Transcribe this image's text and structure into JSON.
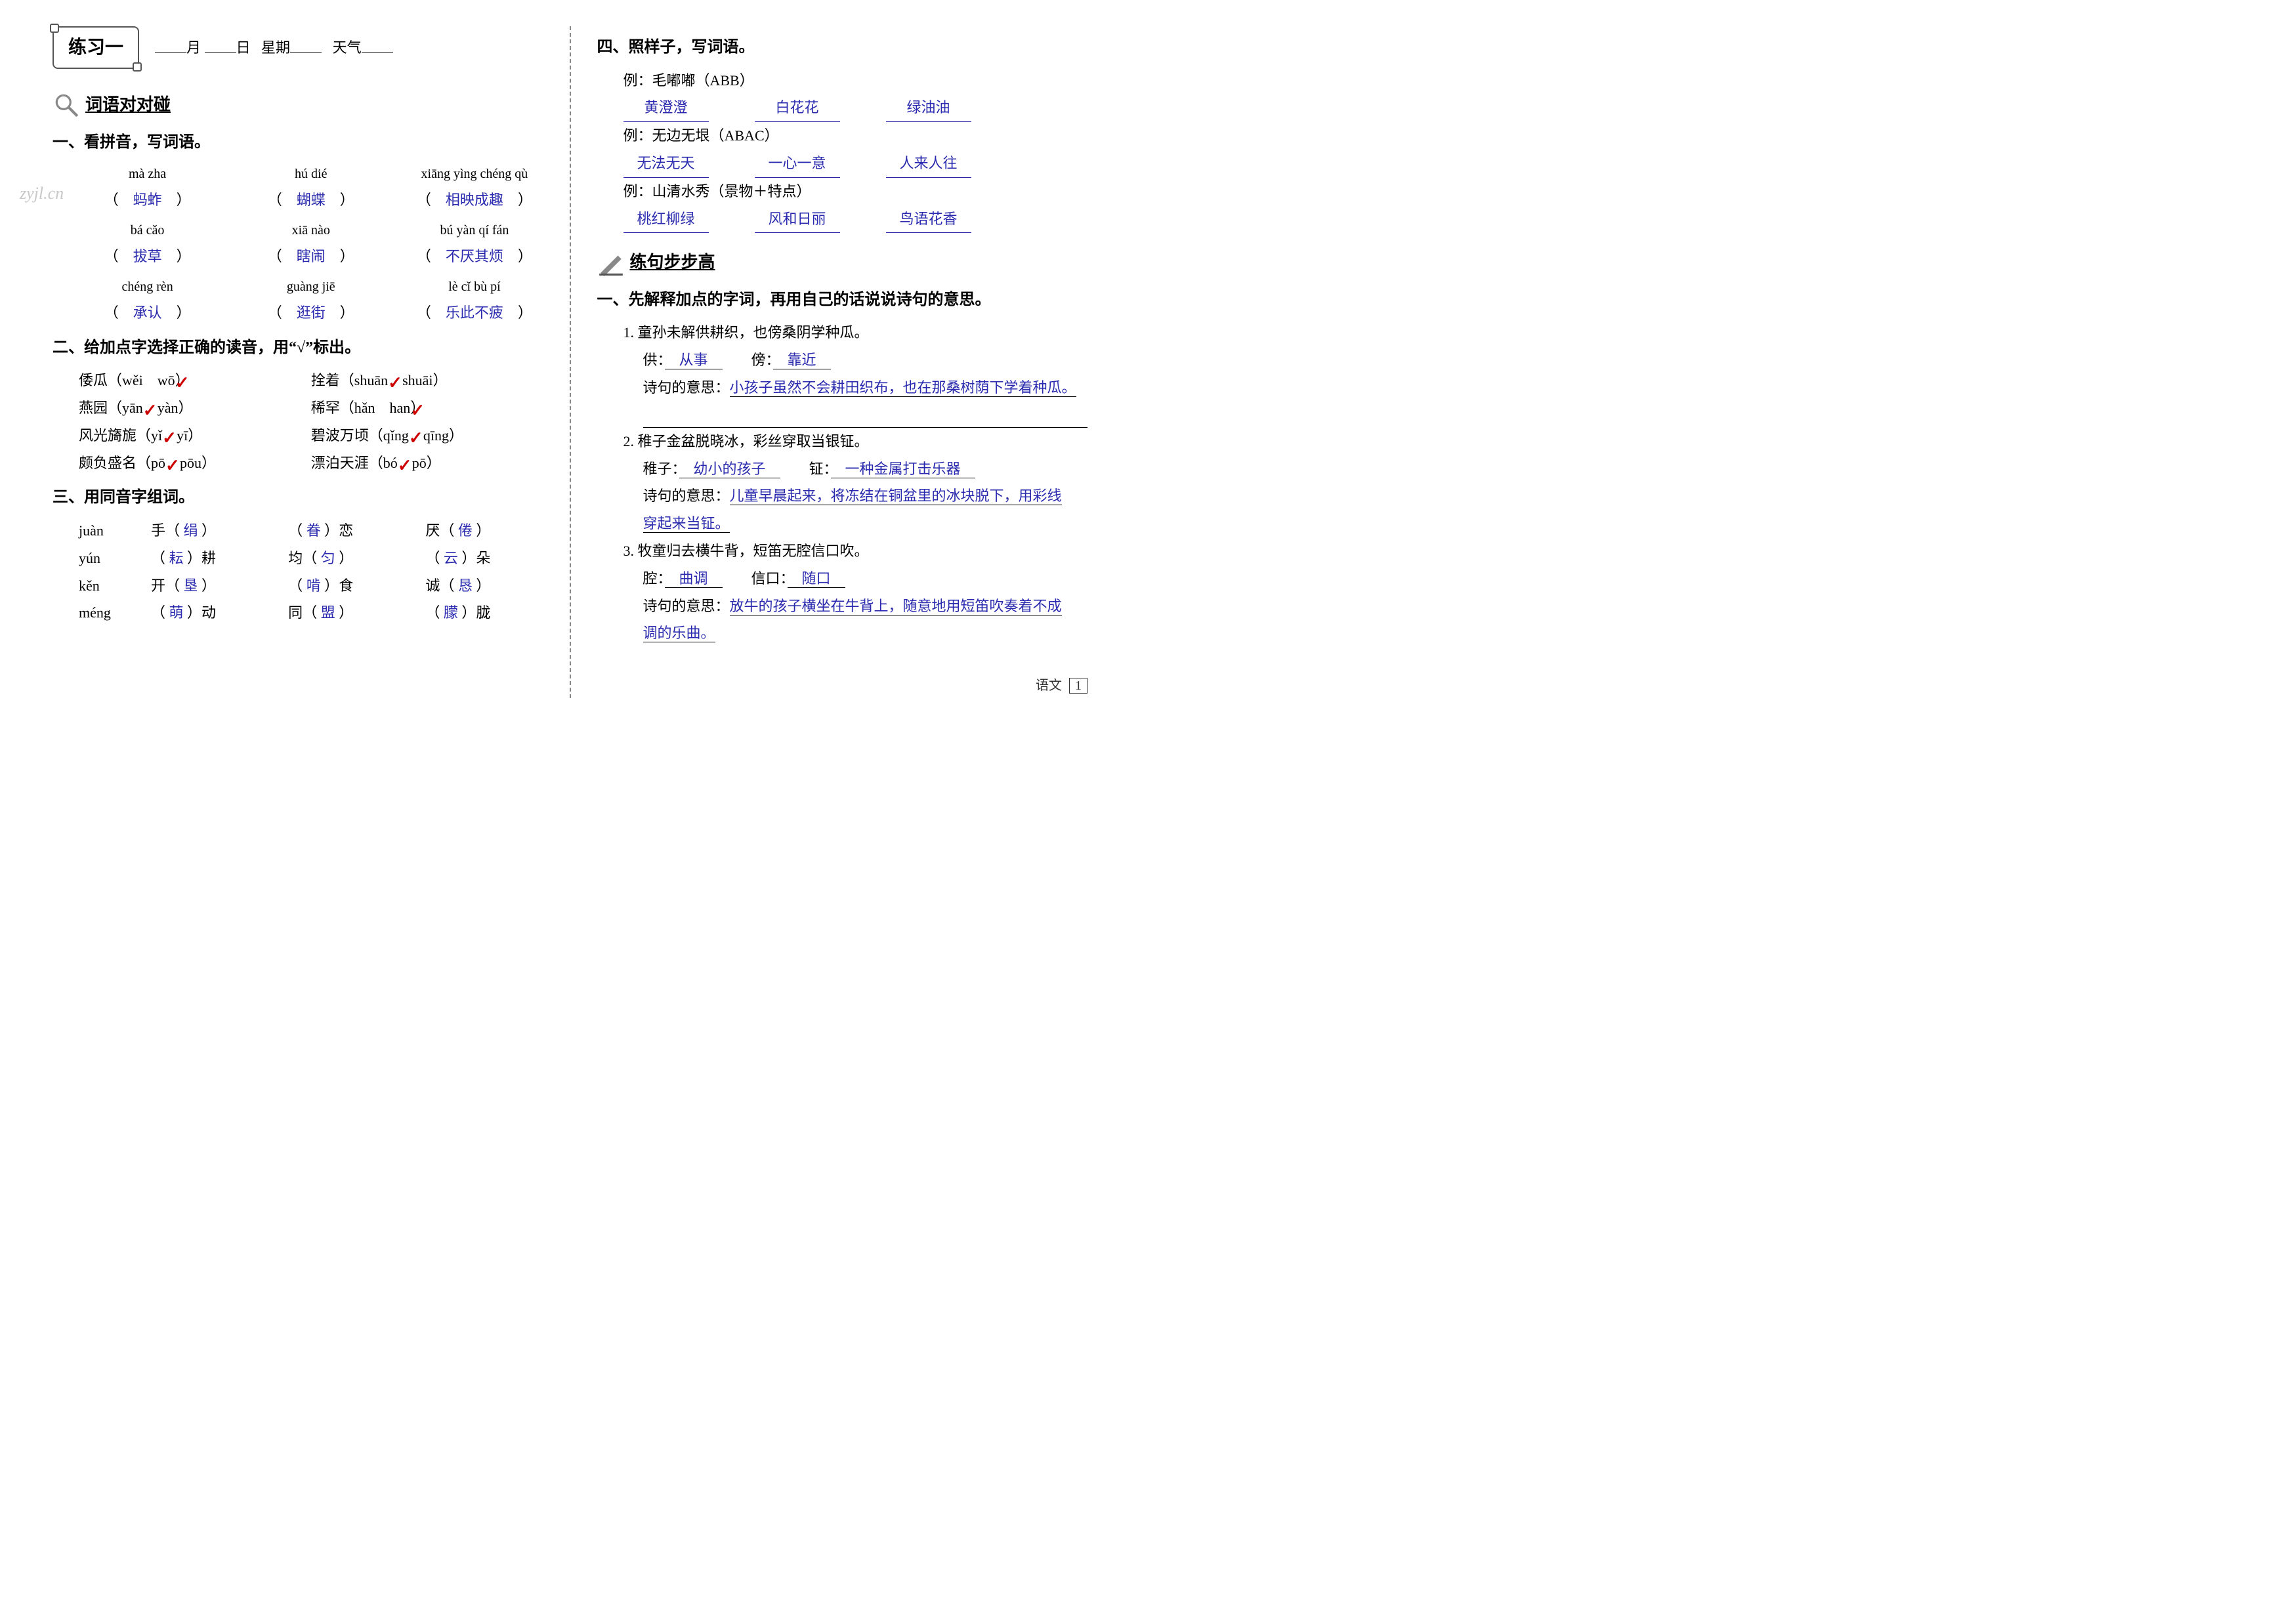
{
  "colors": {
    "answer": "#2a2aae",
    "tick": "#cc0000",
    "text": "#000000",
    "border": "#555555",
    "bg": "#ffffff"
  },
  "left": {
    "title": "练习一",
    "date_labels": {
      "month": "月",
      "day": "日",
      "week": "星期",
      "weather": "天气"
    },
    "section1_title": "词语对对碰",
    "q1_heading": "一、看拼音，写词语。",
    "pinyin_groups": [
      {
        "items": [
          {
            "pinyin": "mà zha",
            "answer": "蚂蚱"
          },
          {
            "pinyin": "hú dié",
            "answer": "蝴蝶"
          },
          {
            "pinyin": "xiāng yìng chéng qù",
            "answer": "相映成趣"
          }
        ]
      },
      {
        "items": [
          {
            "pinyin": "bá cǎo",
            "answer": "拔草"
          },
          {
            "pinyin": "xiā nào",
            "answer": "瞎闹"
          },
          {
            "pinyin": "bú yàn qí fán",
            "answer": "不厌其烦"
          }
        ]
      },
      {
        "items": [
          {
            "pinyin": "chéng rèn",
            "answer": "承认"
          },
          {
            "pinyin": "guàng jiē",
            "answer": "逛街"
          },
          {
            "pinyin": "lè cǐ bù pí",
            "answer": "乐此不疲"
          }
        ]
      }
    ],
    "q2_heading": "二、给加点字选择正确的读音，用“√”标出。",
    "q2_items": [
      {
        "left": {
          "word": "倭瓜",
          "a": "wěi",
          "b": "wō",
          "correct": "b"
        },
        "right": {
          "word": "拴着",
          "a": "shuān",
          "b": "shuāi",
          "correct": "a"
        }
      },
      {
        "left": {
          "word": "燕园",
          "a": "yān",
          "b": "yàn",
          "correct": "a"
        },
        "right": {
          "word": "稀罕",
          "a": "hǎn",
          "b": "han",
          "correct": "b"
        }
      },
      {
        "left": {
          "word": "风光旖旎",
          "a": "yǐ",
          "b": "yī",
          "correct": "a"
        },
        "right": {
          "word": "碧波万顷",
          "a": "qǐng",
          "b": "qīng",
          "correct": "a"
        }
      },
      {
        "left": {
          "word": "颇负盛名",
          "a": "pō",
          "b": "pōu",
          "correct": "a"
        },
        "right": {
          "word": "漂泊天涯",
          "a": "bó",
          "b": "pō",
          "correct": "a"
        }
      }
    ],
    "q3_heading": "三、用同音字组词。",
    "q3_rows": [
      {
        "py": "juàn",
        "c1a": "手",
        "c1b": "绢",
        "c2b": "眷",
        "c2a": "恋",
        "c3a": "厌",
        "c3b": "倦"
      },
      {
        "py": "yún",
        "c1a": "耕",
        "c1b": "耘",
        "c2a_pre": "均",
        "c2b": "匀",
        "c3b": "云",
        "c3a": "朵"
      },
      {
        "py": "kěn",
        "c1a": "开",
        "c1b": "垦",
        "c2b": "啃",
        "c2a": "食",
        "c3a": "诚",
        "c3b": "恳"
      },
      {
        "py": "méng",
        "c1b": "萌",
        "c1a": "动",
        "c2a_pre": "同",
        "c2b": "盟",
        "c3b": "朦",
        "c3a": "胧"
      }
    ]
  },
  "right": {
    "q4_heading": "四、照样子，写词语。",
    "ex4": [
      {
        "label": "例：毛嘟嘟（ABB）",
        "answers": [
          "黄澄澄",
          "白花花",
          "绿油油"
        ]
      },
      {
        "label": "例：无边无垠（ABAC）",
        "answers": [
          "无法无天",
          "一心一意",
          "人来人往"
        ]
      },
      {
        "label": "例：山清水秀（景物＋特点）",
        "answers": [
          "桃红柳绿",
          "风和日丽",
          "鸟语花香"
        ]
      }
    ],
    "section2_title": "练句步步高",
    "q1_heading": "一、先解释加点的字词，再用自己的话说说诗句的意思。",
    "poems": [
      {
        "num": "1.",
        "line": "童孙未解供耕织，也傍桑阴学种瓜。",
        "w1_label": "供：",
        "w1_ans": "从事",
        "w2_label": "傍：",
        "w2_ans": "靠近",
        "meaning_label": "诗句的意思：",
        "meaning": "小孩子虽然不会耕田织布，也在那桑树荫下学着种瓜。"
      },
      {
        "num": "2.",
        "line": "稚子金盆脱晓冰，彩丝穿取当银钲。",
        "w1_label": "稚子：",
        "w1_ans": "幼小的孩子",
        "w2_label": "钲：",
        "w2_ans": "一种金属打击乐器",
        "meaning_label": "诗句的意思：",
        "meaning": "儿童早晨起来，将冻结在铜盆里的冰块脱下，用彩线",
        "meaning2": "穿起来当钲。"
      },
      {
        "num": "3.",
        "line": "牧童归去横牛背，短笛无腔信口吹。",
        "w1_label": "腔：",
        "w1_ans": "曲调",
        "w2_label": "信口：",
        "w2_ans": "随口",
        "meaning_label": "诗句的意思：",
        "meaning": "放牛的孩子横坐在牛背上，随意地用短笛吹奏着不成",
        "meaning2": "调的乐曲。"
      }
    ],
    "footer_subject": "语文",
    "footer_page": "1"
  },
  "watermark": "zyjl.cn"
}
